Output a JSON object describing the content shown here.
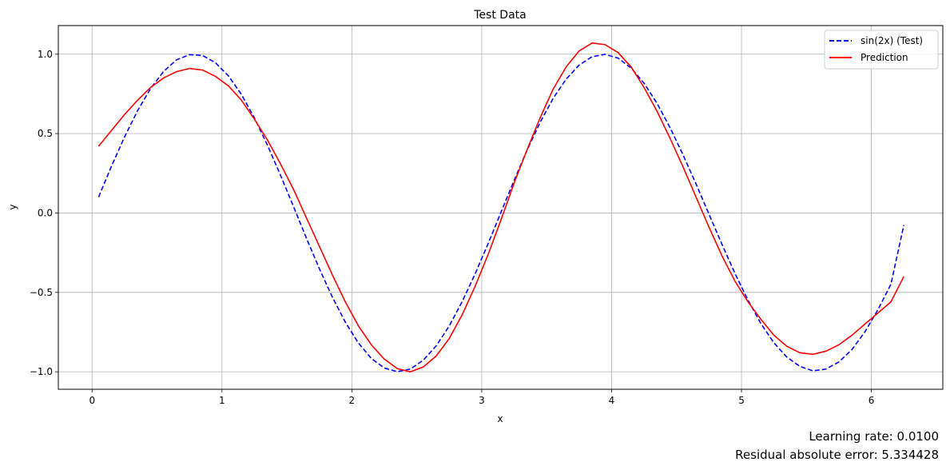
{
  "chart_data": {
    "type": "line",
    "title": "Test Data",
    "xlabel": "x",
    "ylabel": "y",
    "xlim": [
      -0.26,
      6.55
    ],
    "ylim": [
      -1.11,
      1.18
    ],
    "xticks": [
      0,
      1,
      2,
      3,
      4,
      5,
      6
    ],
    "xtick_labels": [
      "0",
      "1",
      "2",
      "3",
      "4",
      "5",
      "6"
    ],
    "yticks": [
      -1.0,
      -0.5,
      0.0,
      0.5,
      1.0
    ],
    "ytick_labels": [
      "−1.0",
      "−0.5",
      "0.0",
      "0.5",
      "1.0"
    ],
    "grid": true,
    "legend_position": "top-right",
    "series": [
      {
        "name": "sin(2x) (Test)",
        "color": "#0000ff",
        "style": "dashed",
        "x": [
          0.05,
          0.15,
          0.25,
          0.35,
          0.45,
          0.55,
          0.65,
          0.75,
          0.85,
          0.95,
          1.05,
          1.15,
          1.25,
          1.35,
          1.45,
          1.55,
          1.65,
          1.75,
          1.85,
          1.95,
          2.05,
          2.15,
          2.25,
          2.35,
          2.45,
          2.55,
          2.65,
          2.75,
          2.85,
          2.95,
          3.05,
          3.15,
          3.25,
          3.35,
          3.45,
          3.55,
          3.65,
          3.75,
          3.85,
          3.95,
          4.05,
          4.15,
          4.25,
          4.35,
          4.45,
          4.55,
          4.65,
          4.75,
          4.85,
          4.95,
          5.05,
          5.15,
          5.25,
          5.35,
          5.45,
          5.55,
          5.65,
          5.75,
          5.85,
          5.95,
          6.05,
          6.15,
          6.25
        ],
        "y": [
          0.1,
          0.296,
          0.479,
          0.644,
          0.783,
          0.891,
          0.964,
          0.997,
          0.992,
          0.946,
          0.863,
          0.746,
          0.598,
          0.427,
          0.239,
          0.042,
          -0.158,
          -0.351,
          -0.53,
          -0.688,
          -0.818,
          -0.916,
          -0.976,
          -0.999,
          -0.983,
          -0.927,
          -0.836,
          -0.711,
          -0.557,
          -0.382,
          -0.191,
          0.008,
          0.207,
          0.397,
          0.571,
          0.722,
          0.843,
          0.931,
          0.984,
          0.999,
          0.975,
          0.913,
          0.817,
          0.69,
          0.537,
          0.366,
          0.183,
          -0.008,
          -0.198,
          -0.381,
          -0.549,
          -0.697,
          -0.818,
          -0.908,
          -0.966,
          -0.994,
          -0.983,
          -0.938,
          -0.86,
          -0.749,
          -0.61,
          -0.45,
          -0.076
        ]
      },
      {
        "name": "Prediction",
        "color": "#ff0000",
        "style": "solid",
        "x": [
          0.05,
          0.15,
          0.25,
          0.35,
          0.45,
          0.55,
          0.65,
          0.75,
          0.85,
          0.95,
          1.05,
          1.15,
          1.25,
          1.35,
          1.45,
          1.55,
          1.65,
          1.75,
          1.85,
          1.95,
          2.05,
          2.15,
          2.25,
          2.35,
          2.45,
          2.55,
          2.65,
          2.75,
          2.85,
          2.95,
          3.05,
          3.15,
          3.25,
          3.35,
          3.45,
          3.55,
          3.65,
          3.75,
          3.85,
          3.95,
          4.05,
          4.15,
          4.25,
          4.35,
          4.45,
          4.55,
          4.65,
          4.75,
          4.85,
          4.95,
          5.05,
          5.15,
          5.25,
          5.35,
          5.45,
          5.55,
          5.65,
          5.75,
          5.85,
          5.95,
          6.05,
          6.15,
          6.25
        ],
        "y": [
          0.42,
          0.52,
          0.62,
          0.71,
          0.79,
          0.85,
          0.89,
          0.91,
          0.9,
          0.86,
          0.8,
          0.71,
          0.59,
          0.46,
          0.31,
          0.15,
          -0.03,
          -0.21,
          -0.39,
          -0.56,
          -0.71,
          -0.83,
          -0.92,
          -0.98,
          -1.0,
          -0.97,
          -0.9,
          -0.79,
          -0.64,
          -0.46,
          -0.26,
          -0.04,
          0.19,
          0.4,
          0.6,
          0.78,
          0.92,
          1.02,
          1.07,
          1.06,
          1.01,
          0.92,
          0.79,
          0.64,
          0.47,
          0.29,
          0.1,
          -0.09,
          -0.27,
          -0.43,
          -0.56,
          -0.67,
          -0.77,
          -0.84,
          -0.88,
          -0.89,
          -0.87,
          -0.83,
          -0.77,
          -0.7,
          -0.63,
          -0.56,
          -0.4
        ]
      }
    ]
  },
  "footer": {
    "learning_rate": "Learning rate: 0.0100",
    "residual_error": "Residual absolute error: 5.334428"
  }
}
